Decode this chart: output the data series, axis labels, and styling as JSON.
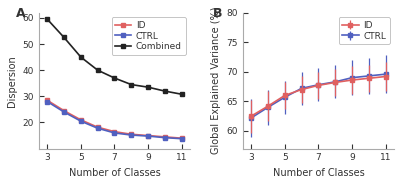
{
  "x": [
    3,
    4,
    5,
    6,
    7,
    8,
    9,
    10,
    11
  ],
  "panel_A": {
    "combined": [
      59.5,
      52.5,
      45.0,
      40.0,
      37.0,
      34.5,
      33.5,
      32.0,
      30.8
    ],
    "id": [
      28.5,
      24.5,
      21.0,
      18.2,
      16.5,
      15.5,
      15.0,
      14.5,
      14.0
    ],
    "ctrl": [
      28.0,
      24.0,
      20.5,
      17.8,
      16.0,
      15.2,
      14.8,
      14.2,
      13.8
    ],
    "xlabel": "Number of Classes",
    "ylabel": "Dispersion",
    "ylim": [
      10,
      62
    ],
    "yticks": [
      20,
      30,
      40,
      50,
      60
    ],
    "xticks": [
      3,
      5,
      7,
      9,
      11
    ],
    "label_A": "A"
  },
  "panel_B": {
    "id_mean": [
      62.5,
      64.2,
      66.0,
      67.0,
      67.7,
      68.2,
      68.6,
      68.9,
      69.2
    ],
    "ctrl_mean": [
      62.2,
      64.0,
      65.7,
      67.2,
      67.8,
      68.3,
      69.0,
      69.3,
      69.6
    ],
    "id_err": [
      2.8,
      2.5,
      2.3,
      2.3,
      2.3,
      2.3,
      2.3,
      2.3,
      2.5
    ],
    "ctrl_err": [
      3.2,
      3.0,
      2.8,
      2.8,
      2.8,
      2.8,
      3.0,
      3.0,
      3.2
    ],
    "xlabel": "Number of Classes",
    "ylabel": "Global Explained Variance (%)",
    "ylim": [
      57,
      80
    ],
    "yticks": [
      60,
      65,
      70,
      75,
      80
    ],
    "xticks": [
      3,
      5,
      7,
      9,
      11
    ],
    "label_B": "B"
  },
  "color_id": "#e06060",
  "color_ctrl": "#5060c0",
  "color_combined": "#222222",
  "color_axes": "#333333",
  "bg_color": "#ffffff",
  "axes_bg": "#f8f8f8",
  "linewidth": 1.2,
  "marker": "s",
  "markersize": 2.5,
  "legend_fontsize": 6.5,
  "axis_fontsize": 7,
  "tick_fontsize": 6.5,
  "label_fontsize": 9
}
